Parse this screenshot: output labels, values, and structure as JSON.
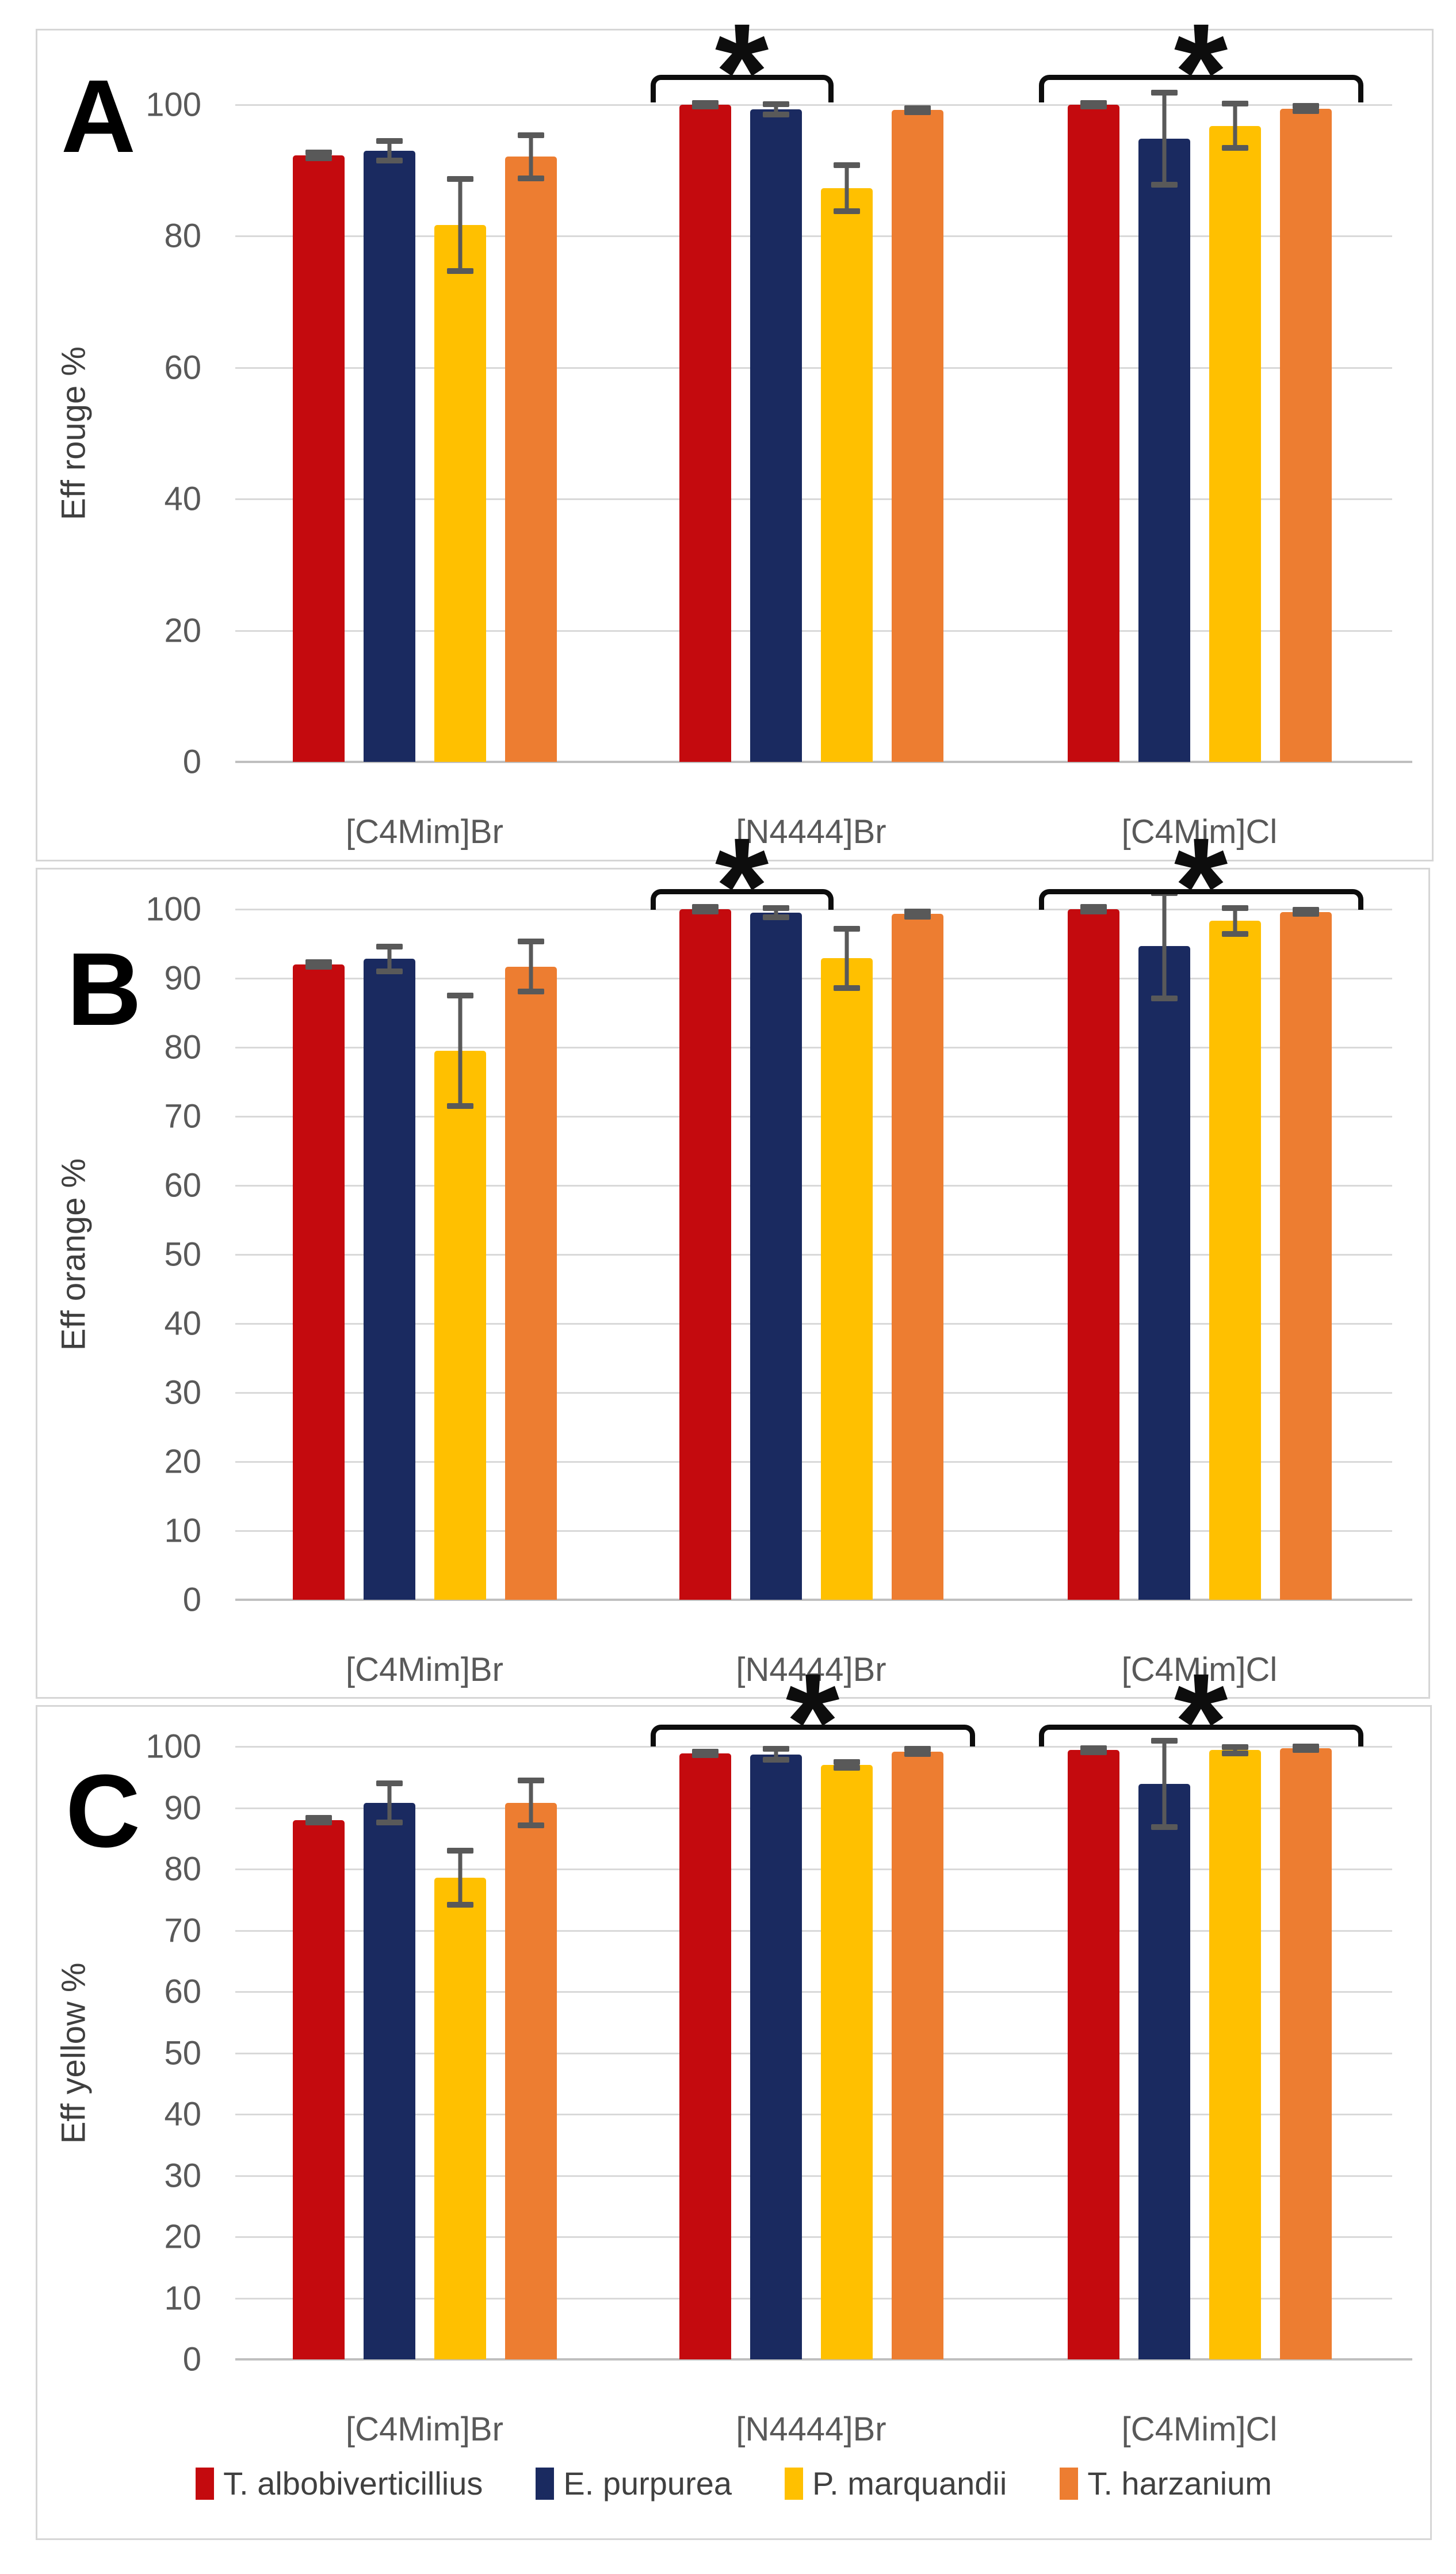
{
  "figure": {
    "significance_marker": "*",
    "colors": {
      "red": "#C40A0E",
      "navy": "#1A2A60",
      "yellow": "#FFC000",
      "orange": "#ED7D31",
      "error_bar": "#595959",
      "gridline": "#D9D9D9",
      "axis_line": "#BFBFBF",
      "tick_text": "#595959",
      "panel_border": "#D6D6D6",
      "bracket": "#0D0D0D"
    },
    "legend": {
      "items": [
        {
          "label": "T. albobiverticillius",
          "color": "#C40A0E"
        },
        {
          "label": "E. purpurea",
          "color": "#1A2A60"
        },
        {
          "label": "P. marquandii",
          "color": "#FFC000"
        },
        {
          "label": "T. harzanium",
          "color": "#ED7D31"
        }
      ]
    }
  },
  "chart_data": [
    {
      "panel": "A",
      "type": "bar",
      "ylabel": "Eff rouge %",
      "xlabel": "",
      "ylim": [
        0,
        100
      ],
      "yticks": [
        100,
        80,
        60,
        40,
        20,
        0
      ],
      "grid": true,
      "categories": [
        "[C4Mim]Br",
        "[N4444]Br",
        "[C4Mim]Cl"
      ],
      "series": [
        {
          "name": "T. albobiverticillius",
          "color": "#C40A0E",
          "values": [
            92.3,
            100,
            100
          ],
          "errors": [
            0.4,
            0.3,
            0.3
          ]
        },
        {
          "name": "E. purpurea",
          "color": "#1A2A60",
          "values": [
            93.0,
            99.3,
            94.8
          ],
          "errors": [
            1.5,
            0.8,
            7.0
          ]
        },
        {
          "name": "P. marquandii",
          "color": "#FFC000",
          "values": [
            81.7,
            87.3,
            96.8
          ],
          "errors": [
            7.0,
            3.5,
            3.4
          ]
        },
        {
          "name": "T. harzanium",
          "color": "#ED7D31",
          "values": [
            92.1,
            99.2,
            99.4
          ],
          "errors": [
            3.3,
            0.3,
            0.4
          ]
        }
      ],
      "significance": [
        {
          "category_index": 1,
          "bar_start": 0,
          "bar_end": 1,
          "marker": "*"
        },
        {
          "category_index": 2,
          "bar_start": 0,
          "bar_end": 3,
          "marker": "*"
        }
      ]
    },
    {
      "panel": "B",
      "type": "bar",
      "ylabel": "Eff orange %",
      "xlabel": "",
      "ylim": [
        0,
        100
      ],
      "yticks": [
        100,
        90,
        80,
        70,
        60,
        50,
        40,
        30,
        20,
        10,
        0
      ],
      "grid": true,
      "categories": [
        "[C4Mim]Br",
        "[N4444]Br",
        "[C4Mim]Cl"
      ],
      "series": [
        {
          "name": "T. albobiverticillius",
          "color": "#C40A0E",
          "values": [
            92.0,
            100,
            100
          ],
          "errors": [
            0.3,
            0.3,
            0.3
          ]
        },
        {
          "name": "E. purpurea",
          "color": "#1A2A60",
          "values": [
            92.8,
            99.5,
            94.7
          ],
          "errors": [
            1.8,
            0.7,
            7.6
          ]
        },
        {
          "name": "P. marquandii",
          "color": "#FFC000",
          "values": [
            79.5,
            92.9,
            98.3
          ],
          "errors": [
            8.0,
            4.3,
            1.9
          ]
        },
        {
          "name": "T. harzanium",
          "color": "#ED7D31",
          "values": [
            91.7,
            99.3,
            99.6
          ],
          "errors": [
            3.6,
            0.4,
            0.3
          ]
        }
      ],
      "significance": [
        {
          "category_index": 1,
          "bar_start": 0,
          "bar_end": 1,
          "marker": "*"
        },
        {
          "category_index": 2,
          "bar_start": 0,
          "bar_end": 3,
          "marker": "*"
        }
      ]
    },
    {
      "panel": "C",
      "type": "bar",
      "ylabel": "Eff yellow %",
      "xlabel": "",
      "ylim": [
        0,
        100
      ],
      "yticks": [
        100,
        90,
        80,
        70,
        60,
        50,
        40,
        30,
        20,
        10,
        0
      ],
      "grid": true,
      "categories": [
        "[C4Mim]Br",
        "[N4444]Br",
        "[C4Mim]Cl"
      ],
      "series": [
        {
          "name": "T. albobiverticillius",
          "color": "#C40A0E",
          "values": [
            88.0,
            98.9,
            99.4
          ],
          "errors": [
            0.4,
            0.3,
            0.3
          ]
        },
        {
          "name": "E. purpurea",
          "color": "#1A2A60",
          "values": [
            90.8,
            98.7,
            93.9
          ],
          "errors": [
            3.2,
            0.9,
            7.0
          ]
        },
        {
          "name": "P. marquandii",
          "color": "#FFC000",
          "values": [
            78.6,
            97.0,
            99.4
          ],
          "errors": [
            4.4,
            0.5,
            0.5
          ]
        },
        {
          "name": "T. harzanium",
          "color": "#ED7D31",
          "values": [
            90.8,
            99.2,
            99.7
          ],
          "errors": [
            3.7,
            0.4,
            0.3
          ]
        }
      ],
      "significance": [
        {
          "category_index": 1,
          "bar_start": 0,
          "bar_end": 3,
          "marker": "*"
        },
        {
          "category_index": 2,
          "bar_start": 0,
          "bar_end": 3,
          "marker": "*"
        }
      ]
    }
  ]
}
